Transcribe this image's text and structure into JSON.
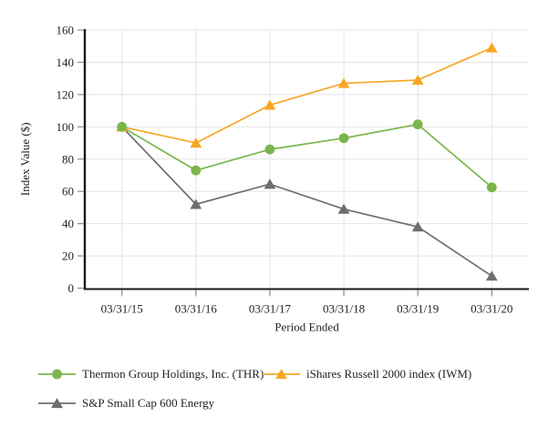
{
  "chart_data": {
    "type": "line",
    "title": "",
    "xlabel": "Period Ended",
    "ylabel": "Index Value ($)",
    "ylim": [
      0,
      160
    ],
    "yticks": [
      0,
      20,
      40,
      60,
      80,
      100,
      120,
      140,
      160
    ],
    "grid": true,
    "legend_position": "bottom-left",
    "categories": [
      "03/31/15",
      "03/31/16",
      "03/31/17",
      "03/31/18",
      "03/31/19",
      "03/31/20"
    ],
    "series": [
      {
        "name": "Thermon Group Holdings, Inc. (THR)",
        "marker": "circle",
        "color": "#7ab64c",
        "values": [
          100,
          73,
          86,
          93,
          101.5,
          62.5
        ]
      },
      {
        "name": "iShares Russell 2000 index (IWM)",
        "marker": "triangle",
        "color": "#f6a623",
        "values": [
          100,
          90,
          113.5,
          127,
          129,
          149
        ]
      },
      {
        "name": "S&P Small Cap 600 Energy",
        "marker": "triangle",
        "color": "#6d6e71",
        "values": [
          100,
          52,
          64.5,
          49,
          38,
          7.5
        ]
      }
    ]
  },
  "colors": {
    "axis": "#1a1a1a",
    "tick": "#8c8c8c",
    "grid": "#e4e4e4",
    "text": "#231f20"
  }
}
